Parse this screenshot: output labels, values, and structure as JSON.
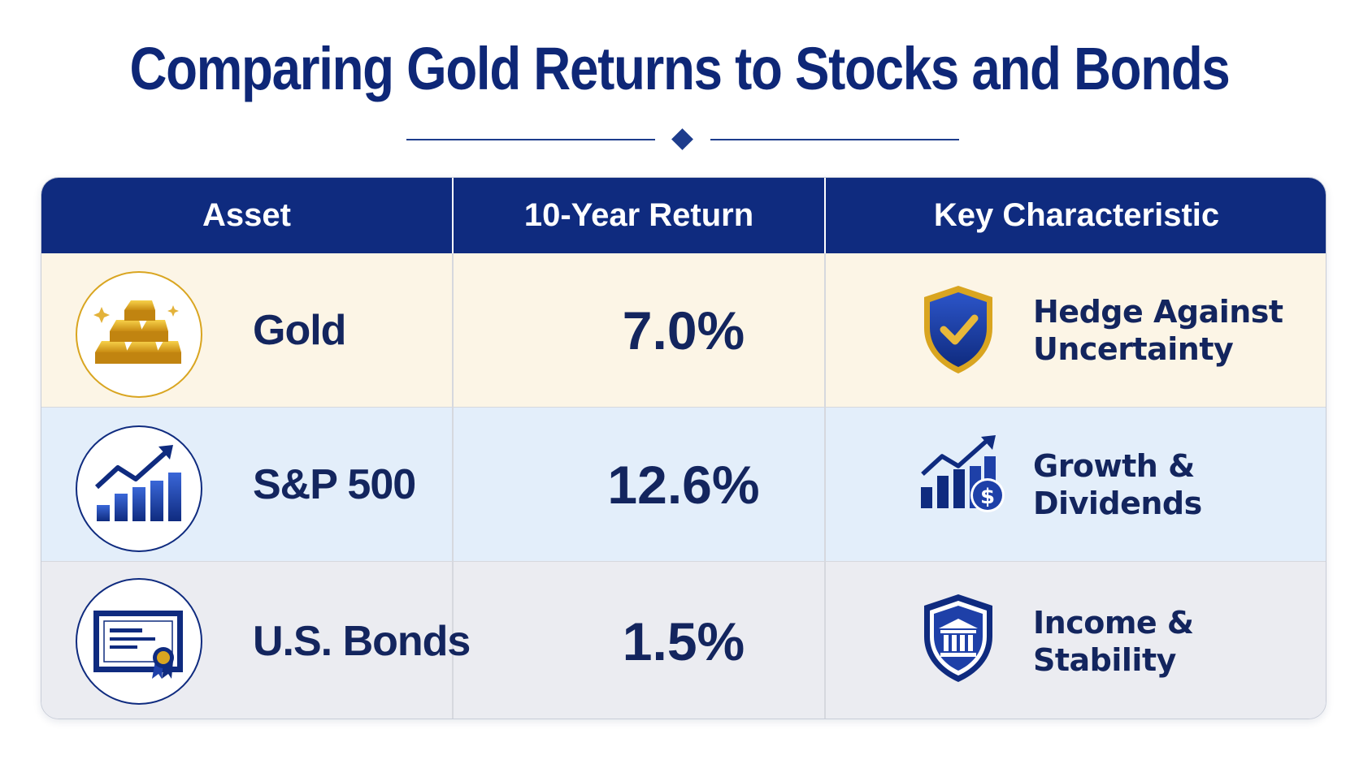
{
  "title": "Comparing Gold Returns to Stocks and Bonds",
  "headers": {
    "asset": "Asset",
    "return": "10-Year Return",
    "characteristic": "Key Characteristic"
  },
  "rows": [
    {
      "asset": "Gold",
      "return": "7.0%",
      "char_line1": "Hedge Against",
      "char_line2": "Uncertainty",
      "asset_icon": "gold-bars-icon",
      "char_icon": "shield-check-icon"
    },
    {
      "asset": "S&P 500",
      "return": "12.6%",
      "char_line1": "Growth &",
      "char_line2": "Dividends",
      "asset_icon": "growth-chart-icon",
      "char_icon": "chart-dollar-icon"
    },
    {
      "asset": "U.S. Bonds",
      "return": "1.5%",
      "char_line1": "Income &",
      "char_line2": "Stability",
      "asset_icon": "bond-certificate-icon",
      "char_icon": "bank-shield-icon"
    }
  ],
  "colors": {
    "navy": "#0f2b7f",
    "text": "#13255e",
    "gold_row": "#fcf5e6",
    "sp_row": "#e3eefa",
    "bond_row": "#ebecf1",
    "gold": "#d9a520"
  }
}
